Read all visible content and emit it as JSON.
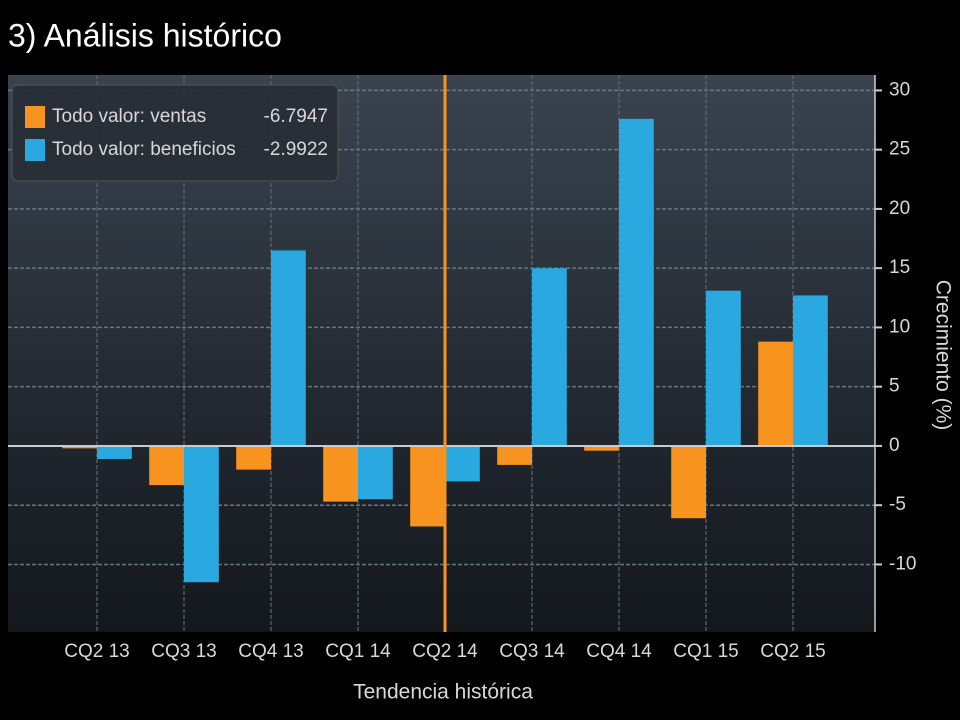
{
  "chart_data": {
    "type": "bar",
    "title": "3) Análisis histórico",
    "x_label": "Tendencia histórica",
    "y_label": "Crecimiento (%)",
    "categories": [
      "CQ2 13",
      "CQ3 13",
      "CQ4 13",
      "CQ1 14",
      "CQ2 14",
      "CQ3 14",
      "CQ4 14",
      "CQ1 15",
      "CQ2 15"
    ],
    "series": [
      {
        "name": "Todo valor: ventas",
        "color": "#f7931e",
        "values": [
          -0.2,
          -3.3,
          -2.0,
          -4.7,
          -6.7947,
          -1.6,
          -0.4,
          -6.1,
          8.8
        ]
      },
      {
        "name": "Todo valor: beneficios",
        "color": "#2aa8e0",
        "values": [
          -1.1,
          -11.5,
          16.5,
          -4.5,
          -2.9922,
          15.0,
          27.6,
          13.1,
          12.7
        ]
      }
    ],
    "highlight_index": 4,
    "ylim": [
      -15.7,
      31.3
    ],
    "yticks": [
      30,
      25,
      20,
      15,
      10,
      5,
      0,
      -5,
      -10
    ],
    "grid": true,
    "legend": "top-left"
  }
}
